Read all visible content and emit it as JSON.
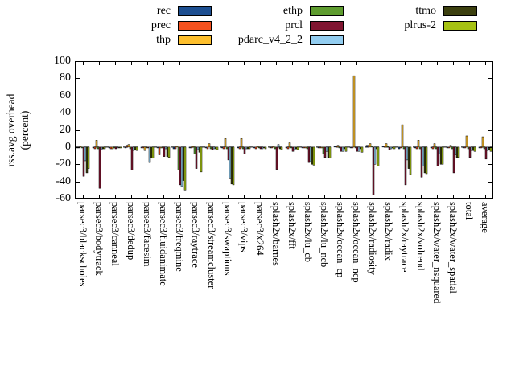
{
  "y_axis": {
    "label_line1": "rss.avg overhead",
    "label_line2": "(percent)",
    "ticks": [
      100,
      80,
      60,
      40,
      20,
      0,
      -20,
      -40,
      -60
    ]
  },
  "legend": {
    "columns": [
      [
        "rec",
        "prec",
        "thp"
      ],
      [
        "ethp",
        "prcl",
        "pdarc_v4_2_2"
      ],
      [
        "ttmo",
        "plrus-2"
      ]
    ]
  },
  "chart_data": {
    "type": "bar",
    "title": "",
    "xlabel": "",
    "ylabel": "rss.avg overhead (percent)",
    "ylim": [
      -60,
      100
    ],
    "grid": false,
    "zero_line": "dashed",
    "legend_position": "top",
    "categories": [
      "parsec3/blackscholes",
      "parsec3/bodytrack",
      "parsec3/canneal",
      "parsec3/dedup",
      "parsec3/facesim",
      "parsec3/fluidanimate",
      "parsec3/freqmine",
      "parsec3/raytrace",
      "parsec3/streamcluster",
      "parsec3/swaptions",
      "parsec3/vips",
      "parsec3/x264",
      "splash2x/barnes",
      "splash2x/fft",
      "splash2x/lu_cb",
      "splash2x/lu_ncb",
      "splash2x/ocean_cp",
      "splash2x/ocean_ncp",
      "splash2x/radiosity",
      "splash2x/radix",
      "splash2x/raytrace",
      "splash2x/volrend",
      "splash2x/water_nsquared",
      "splash2x/water_spatial",
      "total",
      "average"
    ],
    "series": [
      {
        "name": "rec",
        "color": "#1d4f91",
        "values": [
          -1,
          -1,
          -1,
          -1,
          -1,
          -1,
          -2,
          -1,
          -1,
          -1,
          -1,
          -1,
          -1,
          -1,
          -1,
          -1,
          1,
          -1,
          2,
          1,
          -2,
          -1,
          -1,
          -1,
          -1,
          -1
        ]
      },
      {
        "name": "prec",
        "color": "#f4511e",
        "values": [
          -1,
          -2,
          -2,
          2,
          -1,
          -9,
          -2,
          -1,
          -2,
          -2,
          -2,
          -2,
          -1,
          -2,
          -1,
          -1,
          1,
          -1,
          2,
          1,
          -1,
          -2,
          -2,
          -1,
          -1,
          -1
        ]
      },
      {
        "name": "thp",
        "color": "#fdbf2d",
        "values": [
          1,
          8,
          -2,
          3,
          -4,
          -1,
          1,
          1,
          4,
          10,
          10,
          1,
          1,
          5,
          -1,
          -1,
          2,
          83,
          4,
          4,
          26,
          8,
          4,
          2,
          13,
          12
        ]
      },
      {
        "name": "ethp",
        "color": "#5e9c2f",
        "values": [
          -1,
          -2,
          -1,
          -2,
          -1,
          -1,
          -27,
          -8,
          -2,
          -2,
          -2,
          -1,
          -2,
          -1,
          -2,
          -8,
          -1,
          -1,
          1,
          1,
          -2,
          -2,
          -2,
          -2,
          -2,
          -2
        ]
      },
      {
        "name": "prcl",
        "color": "#801531",
        "values": [
          -34,
          -48,
          -2,
          -27,
          -1,
          -11,
          -44,
          -25,
          -3,
          -15,
          -8,
          -2,
          -26,
          -5,
          -18,
          -12,
          -5,
          -5,
          -56,
          -3,
          -44,
          -35,
          -22,
          -30,
          -12,
          -14
        ]
      },
      {
        "name": "pdarc_v4_2_2",
        "color": "#92cdf0",
        "values": [
          -16,
          -3,
          -1,
          -4,
          -18,
          -2,
          -46,
          -3,
          -2,
          -36,
          -2,
          -2,
          3,
          -3,
          -17,
          -5,
          -5,
          -5,
          -20,
          -2,
          -15,
          -22,
          -8,
          -9,
          -4,
          -4
        ]
      },
      {
        "name": "ttmo",
        "color": "#3c400f",
        "values": [
          -30,
          -2,
          -1,
          -3,
          -13,
          -11,
          -39,
          -6,
          -2,
          -43,
          -2,
          -1,
          -2,
          -2,
          -20,
          -12,
          -2,
          -2,
          -2,
          -1,
          -25,
          -30,
          -20,
          -12,
          -4,
          -3
        ]
      },
      {
        "name": "plrus-2",
        "color": "#a6c212",
        "values": [
          -25,
          -2,
          -1,
          -4,
          -13,
          -12,
          -50,
          -29,
          -3,
          -44,
          -2,
          -2,
          -3,
          -3,
          -21,
          -13,
          -5,
          -6,
          -22,
          -2,
          -32,
          -31,
          -20,
          -12,
          -5,
          -5
        ]
      }
    ]
  }
}
